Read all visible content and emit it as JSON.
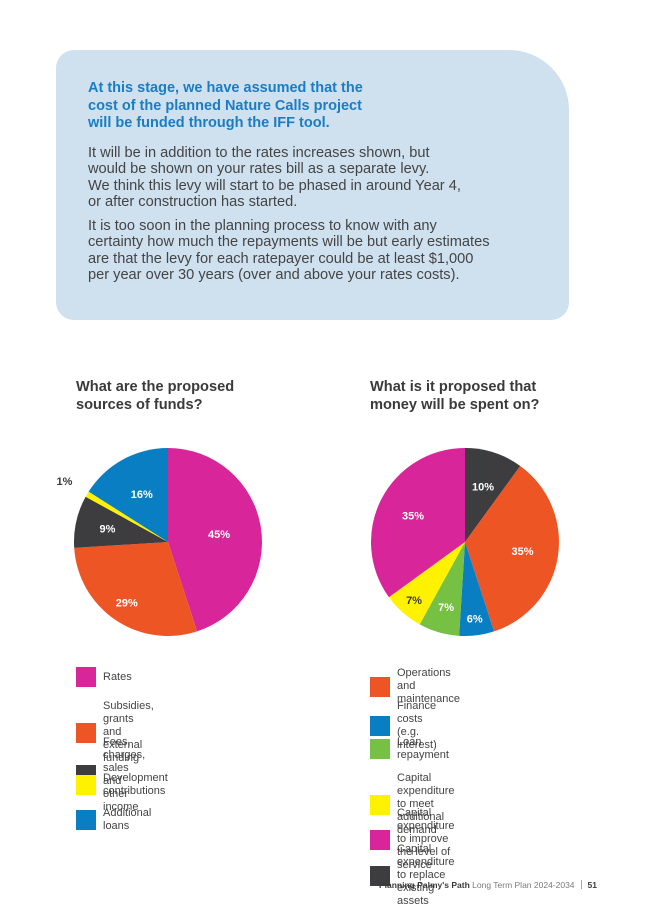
{
  "callout": {
    "heading": "At this stage, we have assumed that the\ncost of the planned Nature Calls project\nwill be funded through the IFF tool.",
    "paragraph1": "It will be in addition to the rates increases shown, but\nwould be shown on your rates bill as a separate levy.\nWe think this levy will start to be phased in around Year 4,\nor after construction has started.",
    "paragraph2": "It is too soon in the planning process to know with any\ncertainty how much the repayments will be but early estimates\nare that the levy for each ratepayer could be at least $1,000\nper year over 30 years (over and above your rates costs)."
  },
  "chart_data": [
    {
      "type": "pie",
      "title": "What are the proposed\nsources of funds?",
      "start_angle_deg": 0,
      "slices": [
        {
          "label": "Rates",
          "value": 45,
          "display": "45%",
          "color": "#d9259a"
        },
        {
          "label": "Subsidies, grants and\nexternal funding",
          "value": 29,
          "display": "29%",
          "color": "#ee5525"
        },
        {
          "label": "Fees, charges, sales\nand other income",
          "value": 9,
          "display": "9%",
          "color": "#3d3c3e"
        },
        {
          "label": "Development contributions",
          "value": 1,
          "display": "1%",
          "color": "#fff200"
        },
        {
          "label": "Additional loans",
          "value": 16,
          "display": "16%",
          "color": "#0a7ec2"
        }
      ]
    },
    {
      "type": "pie",
      "title": "What is it proposed that\nmoney will be spent on?",
      "start_angle_deg": 0,
      "slices": [
        {
          "label": "Capital expenditure\nto replace existing assets",
          "value": 10,
          "display": "10%",
          "color": "#3d3c3e"
        },
        {
          "label": "Operations and\nmaintenance",
          "value": 35,
          "display": "35%",
          "color": "#ee5525"
        },
        {
          "label": "Finance costs (e.g. interest)",
          "value": 6,
          "display": "6%",
          "color": "#0a7ec2"
        },
        {
          "label": "Loan repayment",
          "value": 7,
          "display": "7%",
          "color": "#76c043"
        },
        {
          "label": "Capital expenditure\nto meet additional demand",
          "value": 7,
          "display": "7%",
          "color": "#fff200"
        },
        {
          "label": "Capital expenditure\nto improve the level of service",
          "value": 35,
          "display": "35%",
          "color": "#d9259a"
        }
      ]
    }
  ],
  "legends": [
    [
      "Rates",
      "Subsidies, grants and\nexternal funding",
      "Fees, charges, sales\nand other income",
      "Development contributions",
      "Additional loans"
    ],
    [
      "Operations and\nmaintenance",
      "Finance costs (e.g. interest)",
      "Loan repayment",
      "Capital expenditure\nto meet additional demand",
      "Capital expenditure\nto improve the level of service",
      "Capital expenditure\nto replace existing assets"
    ]
  ],
  "legend_colors": [
    [
      "#d9259a",
      "#ee5525",
      "#3d3c3e",
      "#fff200",
      "#0a7ec2"
    ],
    [
      "#ee5525",
      "#0a7ec2",
      "#76c043",
      "#fff200",
      "#d9259a",
      "#3d3c3e"
    ]
  ],
  "footer": {
    "title_bold": "Planning Palmy's Path",
    "title_light": "Long Term Plan 2024-2034",
    "page_number": "51"
  }
}
